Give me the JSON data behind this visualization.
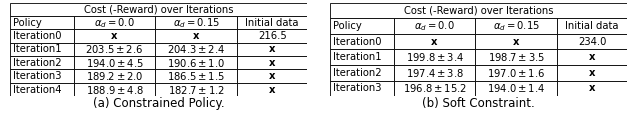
{
  "table_a": {
    "title": "Cost (-Reward) over Iterations",
    "subtitle": "(a) Constrained Policy.",
    "col_headers": [
      "Policy",
      "$\\alpha_d = 0.0$",
      "$\\alpha_d = 0.15$",
      "Initial data"
    ],
    "rows": [
      [
        "Iteration0",
        "x",
        "x",
        "216.5"
      ],
      [
        "Iteration1",
        "$203.5 \\pm 2.6$",
        "$204.3 \\pm 2.4$",
        "x"
      ],
      [
        "Iteration2",
        "$194.0 \\pm 4.5$",
        "$190.6 \\pm 1.0$",
        "x"
      ],
      [
        "Iteration3",
        "$189.2 \\pm 2.0$",
        "$186.5 \\pm 1.5$",
        "x"
      ],
      [
        "Iteration4",
        "$188.9 \\pm 4.8$",
        "$182.7 \\pm 1.2$",
        "x"
      ]
    ]
  },
  "table_b": {
    "title": "Cost (-Reward) over Iterations",
    "subtitle": "(b) Soft Constraint.",
    "col_headers": [
      "Policy",
      "$\\alpha_d = 0.0$",
      "$\\alpha_d = 0.15$",
      "Initial data"
    ],
    "rows": [
      [
        "Iteration0",
        "x",
        "x",
        "234.0"
      ],
      [
        "Iteration1",
        "$199.8 \\pm 3.4$",
        "$198.7 \\pm 3.5$",
        "x"
      ],
      [
        "Iteration2",
        "$197.4 \\pm 3.8$",
        "$197.0 \\pm 1.6$",
        "x"
      ],
      [
        "Iteration3",
        "$196.8 \\pm 15.2$",
        "$194.0 \\pm 1.4$",
        "x"
      ]
    ]
  },
  "font_size": 7.2,
  "subtitle_font_size": 8.5,
  "bg_color": "#ffffff",
  "text_color": "#000000",
  "lw": 0.6
}
